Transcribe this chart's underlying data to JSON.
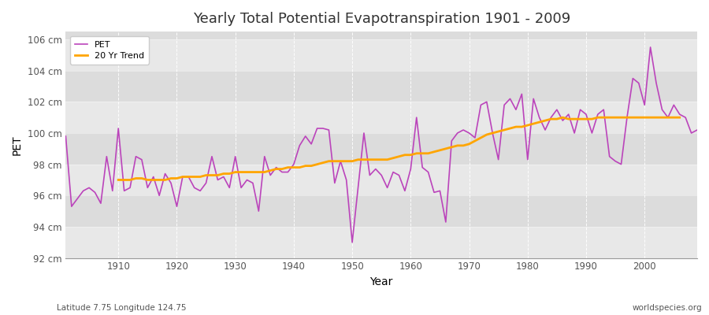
{
  "title": "Yearly Total Potential Evapotranspiration 1901 - 2009",
  "xlabel": "Year",
  "ylabel": "PET",
  "subtitle_left": "Latitude 7.75 Longitude 124.75",
  "subtitle_right": "worldspecies.org",
  "ylim": [
    92,
    106.5
  ],
  "pet_color": "#bb44bb",
  "trend_color": "#ffa500",
  "bg_color": "#f0f0f0",
  "plot_bg_color": "#e8e8e8",
  "band_color_light": "#e0e0e0",
  "band_color_dark": "#d0d0d0",
  "grid_color": "#ffffff",
  "years": [
    1901,
    1902,
    1903,
    1904,
    1905,
    1906,
    1907,
    1908,
    1909,
    1910,
    1911,
    1912,
    1913,
    1914,
    1915,
    1916,
    1917,
    1918,
    1919,
    1920,
    1921,
    1922,
    1923,
    1924,
    1925,
    1926,
    1927,
    1928,
    1929,
    1930,
    1931,
    1932,
    1933,
    1934,
    1935,
    1936,
    1937,
    1938,
    1939,
    1940,
    1941,
    1942,
    1943,
    1944,
    1945,
    1946,
    1947,
    1948,
    1949,
    1950,
    1951,
    1952,
    1953,
    1954,
    1955,
    1956,
    1957,
    1958,
    1959,
    1960,
    1961,
    1962,
    1963,
    1964,
    1965,
    1966,
    1967,
    1968,
    1969,
    1970,
    1971,
    1972,
    1973,
    1974,
    1975,
    1976,
    1977,
    1978,
    1979,
    1980,
    1981,
    1982,
    1983,
    1984,
    1985,
    1986,
    1987,
    1988,
    1989,
    1990,
    1991,
    1992,
    1993,
    1994,
    1995,
    1996,
    1997,
    1998,
    1999,
    2000,
    2001,
    2002,
    2003,
    2004,
    2005,
    2006,
    2007,
    2008,
    2009
  ],
  "pet": [
    99.8,
    95.3,
    95.8,
    96.3,
    96.5,
    96.2,
    95.5,
    98.5,
    96.3,
    100.3,
    96.3,
    96.5,
    98.5,
    98.3,
    96.5,
    97.2,
    96.0,
    97.4,
    96.8,
    95.3,
    97.2,
    97.2,
    96.5,
    96.3,
    96.8,
    98.5,
    97.0,
    97.2,
    96.5,
    98.5,
    96.5,
    97.0,
    96.8,
    95.0,
    98.5,
    97.3,
    97.8,
    97.5,
    97.5,
    98.0,
    99.2,
    99.8,
    99.3,
    100.3,
    100.3,
    100.2,
    96.8,
    98.2,
    97.0,
    93.0,
    96.5,
    100.0,
    97.3,
    97.7,
    97.3,
    96.5,
    97.5,
    97.3,
    96.3,
    97.7,
    101.0,
    97.8,
    97.5,
    96.2,
    96.3,
    94.3,
    99.5,
    100.0,
    100.2,
    100.0,
    99.7,
    101.8,
    102.0,
    100.0,
    98.3,
    101.8,
    102.2,
    101.5,
    102.5,
    98.3,
    102.2,
    101.0,
    100.2,
    101.0,
    101.5,
    100.8,
    101.2,
    100.0,
    101.5,
    101.2,
    100.0,
    101.2,
    101.5,
    98.5,
    98.2,
    98.0,
    101.0,
    103.5,
    103.2,
    101.8,
    105.5,
    103.2,
    101.5,
    101.0,
    101.8,
    101.2,
    101.0,
    100.0,
    100.2
  ],
  "trend": [
    null,
    null,
    null,
    null,
    null,
    null,
    null,
    null,
    null,
    97.0,
    97.0,
    97.0,
    97.1,
    97.1,
    97.0,
    97.0,
    97.0,
    97.0,
    97.1,
    97.1,
    97.2,
    97.2,
    97.2,
    97.2,
    97.3,
    97.3,
    97.3,
    97.4,
    97.4,
    97.5,
    97.5,
    97.5,
    97.5,
    97.5,
    97.5,
    97.6,
    97.7,
    97.7,
    97.8,
    97.8,
    97.8,
    97.9,
    97.9,
    98.0,
    98.1,
    98.2,
    98.2,
    98.2,
    98.2,
    98.2,
    98.3,
    98.3,
    98.3,
    98.3,
    98.3,
    98.3,
    98.4,
    98.5,
    98.6,
    98.6,
    98.7,
    98.7,
    98.7,
    98.8,
    98.9,
    99.0,
    99.1,
    99.2,
    99.2,
    99.3,
    99.5,
    99.7,
    99.9,
    100.0,
    100.1,
    100.2,
    100.3,
    100.4,
    100.4,
    100.5,
    100.6,
    100.7,
    100.8,
    100.9,
    100.9,
    101.0,
    100.9,
    100.9,
    100.9,
    100.9,
    100.9,
    101.0,
    101.0,
    101.0,
    101.0,
    101.0,
    101.0,
    101.0,
    101.0,
    101.0,
    101.0,
    101.0,
    101.0,
    101.0,
    101.0,
    101.0,
    null,
    null
  ]
}
